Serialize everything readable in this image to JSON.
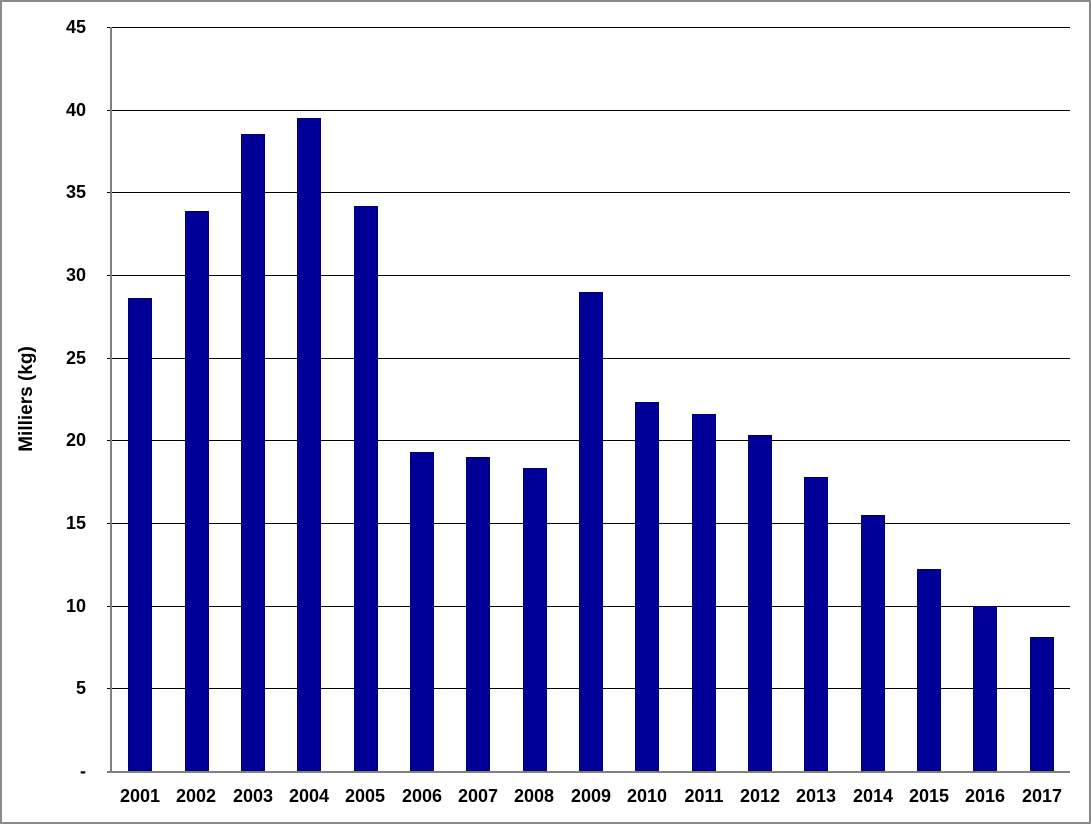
{
  "chart_data": {
    "type": "bar",
    "title": "",
    "xlabel": "",
    "ylabel": "Milliers (kg)",
    "categories": [
      "2001",
      "2002",
      "2003",
      "2004",
      "2005",
      "2006",
      "2007",
      "2008",
      "2009",
      "2010",
      "2011",
      "2012",
      "2013",
      "2014",
      "2015",
      "2016",
      "2017"
    ],
    "values": [
      28.6,
      33.9,
      38.5,
      39.5,
      34.2,
      19.3,
      19.0,
      18.3,
      29.0,
      22.3,
      21.6,
      20.3,
      17.8,
      15.5,
      12.2,
      10.0,
      8.1
    ],
    "ylim": [
      0,
      45
    ],
    "yticks": [
      {
        "value": 45,
        "label": "45"
      },
      {
        "value": 40,
        "label": "40"
      },
      {
        "value": 35,
        "label": "35"
      },
      {
        "value": 30,
        "label": "30"
      },
      {
        "value": 25,
        "label": "25"
      },
      {
        "value": 20,
        "label": "20"
      },
      {
        "value": 15,
        "label": "15"
      },
      {
        "value": 10,
        "label": "10"
      },
      {
        "value": 5,
        "label": "5"
      },
      {
        "value": 0,
        "label": "-"
      }
    ],
    "grid": "horizontal",
    "legend": "none",
    "colors": {
      "bar_fill": "#000099",
      "bar_border": "#000066",
      "gridline": "#000000",
      "axis_line": "#808080",
      "text": "#000000",
      "background": "#FFFFFF",
      "frame_border": "#8A8A8A"
    }
  }
}
